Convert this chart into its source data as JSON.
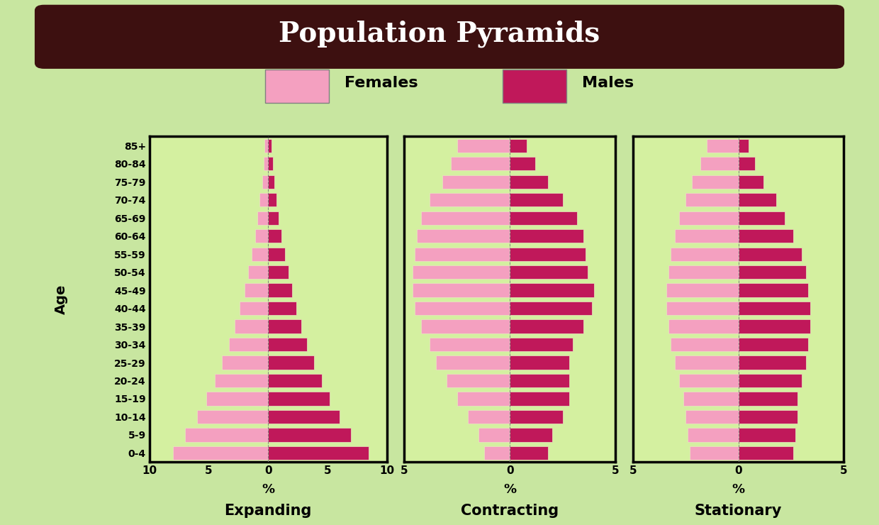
{
  "title": "Population Pyramids",
  "title_bg": "#3d1010",
  "title_color": "#ffffff",
  "background_outer": "#c8e6a0",
  "background_inner": "#d4f0a0",
  "female_color": "#f4a0c0",
  "male_color": "#c0185a",
  "age_labels": [
    "85+",
    "80-84",
    "75-79",
    "70-74",
    "65-69",
    "60-64",
    "55-59",
    "50-54",
    "45-49",
    "40-44",
    "35-39",
    "30-34",
    "25-29",
    "20-24",
    "15-19",
    "10-14",
    "5-9",
    "0-4"
  ],
  "expanding_females": [
    0.3,
    0.4,
    0.5,
    0.7,
    0.9,
    1.1,
    1.4,
    1.7,
    2.0,
    2.4,
    2.8,
    3.3,
    3.9,
    4.5,
    5.2,
    6.0,
    7.0,
    8.0
  ],
  "expanding_males": [
    0.3,
    0.4,
    0.5,
    0.7,
    0.9,
    1.1,
    1.4,
    1.7,
    2.0,
    2.4,
    2.8,
    3.3,
    3.9,
    4.5,
    5.2,
    6.0,
    7.0,
    8.5
  ],
  "contracting_females": [
    2.5,
    2.8,
    3.2,
    3.8,
    4.2,
    4.4,
    4.5,
    4.6,
    4.6,
    4.5,
    4.2,
    3.8,
    3.5,
    3.0,
    2.5,
    2.0,
    1.5,
    1.2
  ],
  "contracting_males": [
    0.8,
    1.2,
    1.8,
    2.5,
    3.2,
    3.5,
    3.6,
    3.7,
    4.0,
    3.9,
    3.5,
    3.0,
    2.8,
    2.8,
    2.8,
    2.5,
    2.0,
    1.8
  ],
  "stationary_females": [
    1.5,
    1.8,
    2.2,
    2.5,
    2.8,
    3.0,
    3.2,
    3.3,
    3.4,
    3.4,
    3.3,
    3.2,
    3.0,
    2.8,
    2.6,
    2.5,
    2.4,
    2.3
  ],
  "stationary_males": [
    0.5,
    0.8,
    1.2,
    1.8,
    2.2,
    2.6,
    3.0,
    3.2,
    3.3,
    3.4,
    3.4,
    3.3,
    3.2,
    3.0,
    2.8,
    2.8,
    2.7,
    2.6
  ],
  "subplot_titles": [
    "Expanding",
    "Contracting",
    "Stationary"
  ],
  "xlim_expanding": 10,
  "xlim_contracting": 5,
  "xlim_stationary": 5,
  "ylabel": "Age",
  "pct_label": "%"
}
